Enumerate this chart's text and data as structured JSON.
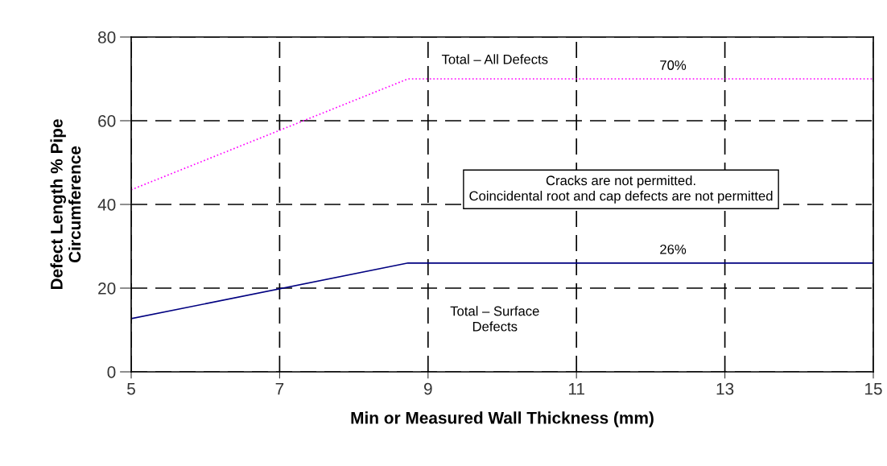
{
  "chart_data": {
    "type": "line",
    "xlabel": "Min or Measured Wall Thickness (mm)",
    "ylabel": "Defect Length % Pipe\nCircumference",
    "series": [
      {
        "color": "#ff00ff",
        "line_style": "dotted",
        "x": [
          5,
          8.73,
          15
        ],
        "values": [
          43.5,
          70,
          70
        ]
      },
      {
        "color": "#000080",
        "line_style": "solid",
        "x": [
          5,
          8.73,
          15
        ],
        "values": [
          12.7,
          26,
          26
        ]
      }
    ],
    "xlim": [
      5,
      15
    ],
    "xticks": [
      5,
      7,
      9,
      11,
      13,
      15
    ],
    "ylim": [
      0,
      80
    ],
    "yticks": [
      0,
      20,
      40,
      60,
      80
    ],
    "grid": true,
    "marker": "none",
    "annotations": [
      "Total – All Defects",
      {
        "text": "70%",
        "x": 12.3,
        "y": 70
      },
      "Cracks are not permitted.\nCoincidental root and cap defects are not permitted",
      {
        "text": "26%",
        "x": 12.3,
        "y": 26
      },
      "Total – Surface\nDefects"
    ]
  }
}
